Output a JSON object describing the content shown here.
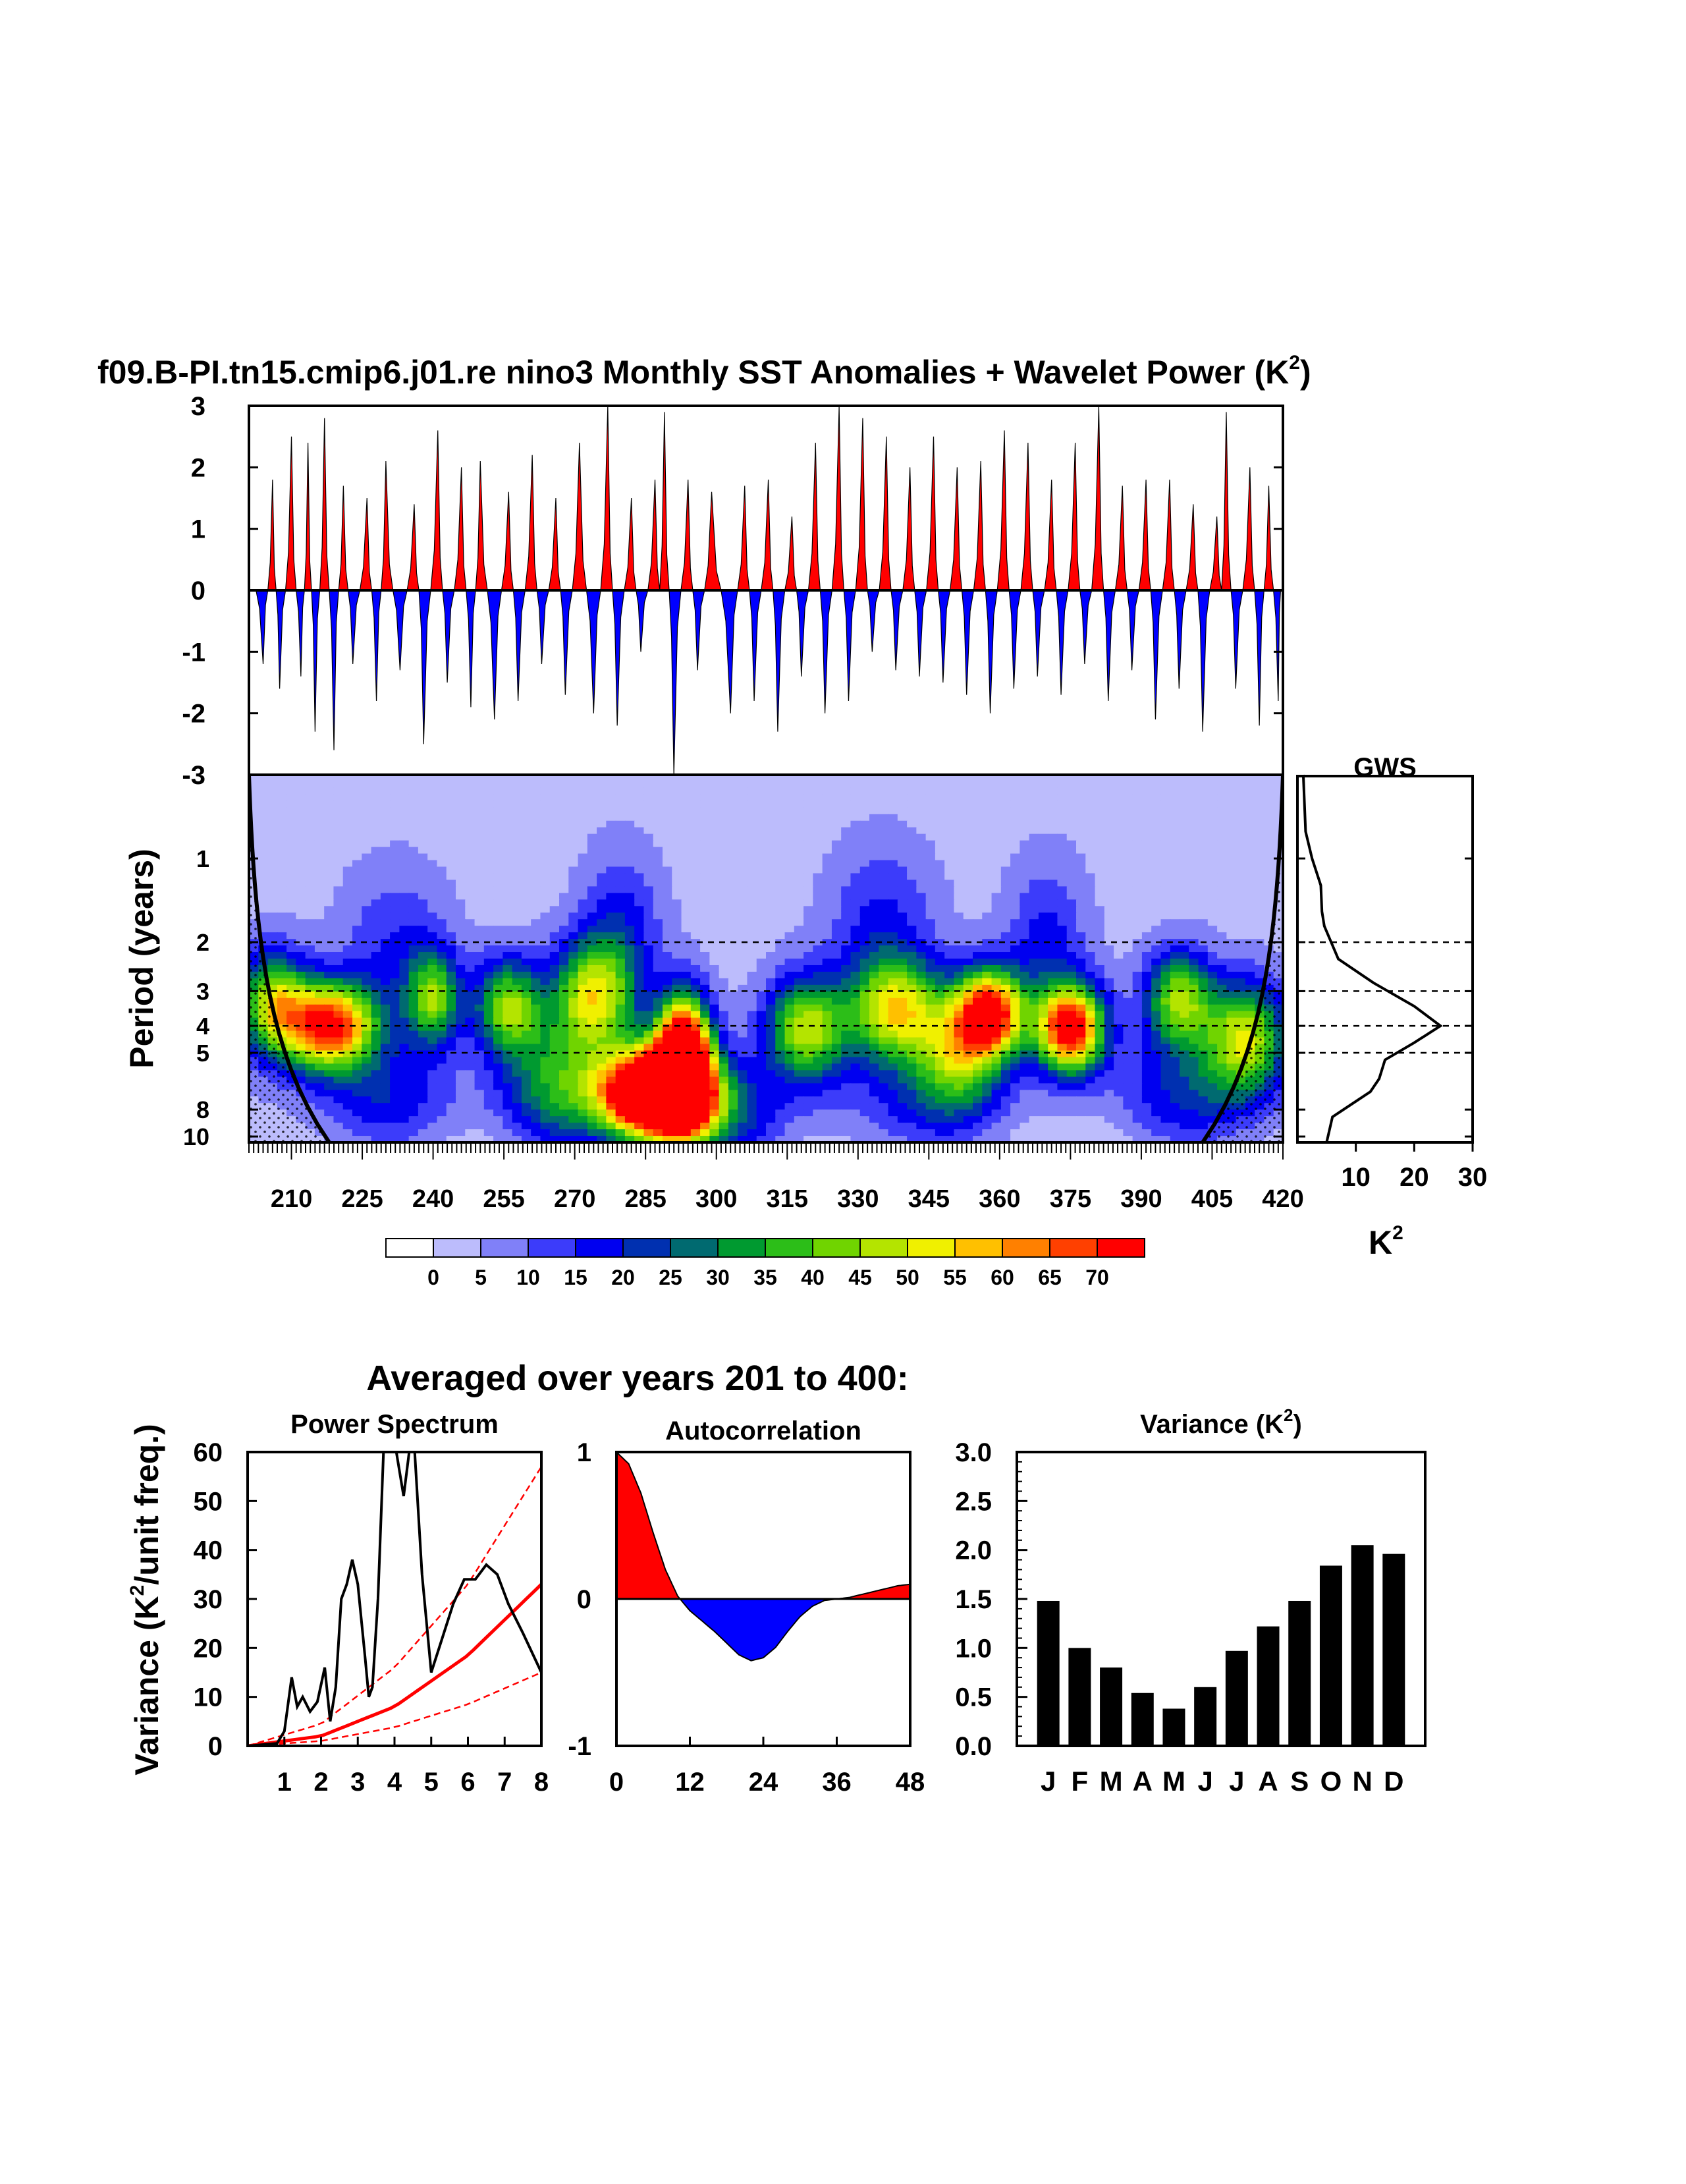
{
  "page": {
    "title": "f09.B-PI.tn15.cmip6.j01.re nino3 Monthly SST Anomalies + Wavelet Power (K",
    "title_sup": "2",
    "title_close": ")",
    "averaged_title": "Averaged over years 201 to 400:"
  },
  "colors": {
    "positive": "#ff0000",
    "negative": "#0000ff",
    "fit": "#ff0000",
    "bars": "#000000"
  },
  "chart_data": [
    {
      "id": "sst",
      "type": "area",
      "xlim": [
        201,
        420
      ],
      "ylim": [
        -3,
        3
      ],
      "yticks": [
        -3,
        -2,
        -1,
        0,
        1,
        2,
        3
      ],
      "ytick_labels": [
        "-3",
        "-2",
        "-1",
        "0",
        "1",
        "2",
        "3"
      ],
      "peaks": [
        {
          "x": 204,
          "y": -1.2
        },
        {
          "x": 206,
          "y": 1.8
        },
        {
          "x": 207.5,
          "y": -1.6
        },
        {
          "x": 210,
          "y": 2.5
        },
        {
          "x": 212,
          "y": -1.4
        },
        {
          "x": 213.5,
          "y": 2.4
        },
        {
          "x": 215,
          "y": -2.3
        },
        {
          "x": 217,
          "y": 2.8
        },
        {
          "x": 219,
          "y": -2.6
        },
        {
          "x": 221,
          "y": 1.7
        },
        {
          "x": 223,
          "y": -1.2
        },
        {
          "x": 226,
          "y": 1.5
        },
        {
          "x": 228,
          "y": -1.8
        },
        {
          "x": 230,
          "y": 2.1
        },
        {
          "x": 233,
          "y": -1.3
        },
        {
          "x": 236,
          "y": 1.4
        },
        {
          "x": 238,
          "y": -2.5
        },
        {
          "x": 241,
          "y": 2.6
        },
        {
          "x": 243,
          "y": -1.5
        },
        {
          "x": 246,
          "y": 2.0
        },
        {
          "x": 248,
          "y": -1.9
        },
        {
          "x": 250,
          "y": 2.1
        },
        {
          "x": 253,
          "y": -2.1
        },
        {
          "x": 256,
          "y": 1.6
        },
        {
          "x": 258,
          "y": -1.8
        },
        {
          "x": 261,
          "y": 2.2
        },
        {
          "x": 263,
          "y": -1.2
        },
        {
          "x": 266,
          "y": 1.5
        },
        {
          "x": 268,
          "y": -1.7
        },
        {
          "x": 271,
          "y": 2.4
        },
        {
          "x": 274,
          "y": -2.0
        },
        {
          "x": 277,
          "y": 3.0
        },
        {
          "x": 279,
          "y": -2.2
        },
        {
          "x": 282,
          "y": 1.5
        },
        {
          "x": 284,
          "y": -1.0
        },
        {
          "x": 287,
          "y": 1.8
        },
        {
          "x": 289,
          "y": 2.9
        },
        {
          "x": 291,
          "y": -3.0
        },
        {
          "x": 294,
          "y": 1.8
        },
        {
          "x": 296,
          "y": -1.3
        },
        {
          "x": 299,
          "y": 1.6
        },
        {
          "x": 303,
          "y": -2.0
        },
        {
          "x": 306,
          "y": 1.7
        },
        {
          "x": 308,
          "y": -1.8
        },
        {
          "x": 311,
          "y": 1.8
        },
        {
          "x": 313,
          "y": -2.3
        },
        {
          "x": 316,
          "y": 1.2
        },
        {
          "x": 318,
          "y": -1.4
        },
        {
          "x": 321,
          "y": 2.4
        },
        {
          "x": 323,
          "y": -2.0
        },
        {
          "x": 326,
          "y": 3.0
        },
        {
          "x": 328,
          "y": -1.8
        },
        {
          "x": 331,
          "y": 2.8
        },
        {
          "x": 333,
          "y": -1.0
        },
        {
          "x": 336,
          "y": 2.5
        },
        {
          "x": 338,
          "y": -1.3
        },
        {
          "x": 341,
          "y": 2.0
        },
        {
          "x": 343,
          "y": -1.4
        },
        {
          "x": 346,
          "y": 2.5
        },
        {
          "x": 348,
          "y": -1.5
        },
        {
          "x": 351,
          "y": 2.0
        },
        {
          "x": 353,
          "y": -1.7
        },
        {
          "x": 356,
          "y": 2.1
        },
        {
          "x": 358,
          "y": -2.0
        },
        {
          "x": 361,
          "y": 2.6
        },
        {
          "x": 363,
          "y": -1.6
        },
        {
          "x": 366,
          "y": 2.4
        },
        {
          "x": 368,
          "y": -1.4
        },
        {
          "x": 371,
          "y": 1.8
        },
        {
          "x": 373,
          "y": -1.7
        },
        {
          "x": 376,
          "y": 2.4
        },
        {
          "x": 378,
          "y": -1.2
        },
        {
          "x": 381,
          "y": 3.0
        },
        {
          "x": 383,
          "y": -1.8
        },
        {
          "x": 386,
          "y": 1.7
        },
        {
          "x": 388,
          "y": -1.3
        },
        {
          "x": 391,
          "y": 1.8
        },
        {
          "x": 393,
          "y": -2.1
        },
        {
          "x": 396,
          "y": 1.8
        },
        {
          "x": 398,
          "y": -1.6
        },
        {
          "x": 401,
          "y": 1.4
        },
        {
          "x": 403,
          "y": -2.3
        },
        {
          "x": 406,
          "y": 1.2
        },
        {
          "x": 408,
          "y": 2.9
        },
        {
          "x": 410,
          "y": -1.6
        },
        {
          "x": 413,
          "y": 2.0
        },
        {
          "x": 415,
          "y": -2.2
        },
        {
          "x": 417,
          "y": 1.7
        },
        {
          "x": 419,
          "y": -1.8
        }
      ]
    },
    {
      "id": "wavelet",
      "type": "heatmap",
      "xlim": [
        201,
        420
      ],
      "period_range": [
        0.5,
        10.5
      ],
      "log_y": true,
      "xticks": [
        210,
        225,
        240,
        255,
        270,
        285,
        300,
        315,
        330,
        345,
        360,
        375,
        390,
        405,
        420
      ],
      "xtick_labels": [
        "210",
        "225",
        "240",
        "255",
        "270",
        "285",
        "300",
        "315",
        "330",
        "345",
        "360",
        "375",
        "390",
        "405",
        "420"
      ],
      "yticks": [
        1,
        2,
        3,
        4,
        5,
        8,
        10
      ],
      "ytick_labels": [
        "1",
        "2",
        "3",
        "4",
        "5",
        "8",
        "10"
      ],
      "ylabel": "Period (years)",
      "dashed_periods": [
        2,
        3,
        4,
        5
      ],
      "background_power": 3,
      "blobs": [
        {
          "x": 218,
          "period": 4.0,
          "power": 70,
          "sx": 7,
          "sy": 0.11
        },
        {
          "x": 206,
          "period": 3.3,
          "power": 42,
          "sx": 5,
          "sy": 0.13
        },
        {
          "x": 240,
          "period": 3.2,
          "power": 38,
          "sx": 4,
          "sy": 0.12
        },
        {
          "x": 256,
          "period": 3.4,
          "power": 40,
          "sx": 5,
          "sy": 0.12
        },
        {
          "x": 274,
          "period": 3.1,
          "power": 45,
          "sx": 6,
          "sy": 0.14
        },
        {
          "x": 287,
          "period": 7.0,
          "power": 110,
          "sx": 8,
          "sy": 0.11
        },
        {
          "x": 293,
          "period": 5.2,
          "power": 95,
          "sx": 4,
          "sy": 0.15
        },
        {
          "x": 266,
          "period": 6.5,
          "power": 30,
          "sx": 8,
          "sy": 0.17
        },
        {
          "x": 319,
          "period": 4.1,
          "power": 45,
          "sx": 6,
          "sy": 0.13
        },
        {
          "x": 338,
          "period": 3.5,
          "power": 48,
          "sx": 7,
          "sy": 0.13
        },
        {
          "x": 358,
          "period": 3.6,
          "power": 72,
          "sx": 5,
          "sy": 0.11
        },
        {
          "x": 375,
          "period": 4.1,
          "power": 75,
          "sx": 5,
          "sy": 0.11
        },
        {
          "x": 351,
          "period": 5.0,
          "power": 34,
          "sx": 6,
          "sy": 0.14
        },
        {
          "x": 398,
          "period": 3.2,
          "power": 42,
          "sx": 5,
          "sy": 0.12
        },
        {
          "x": 412,
          "period": 4.4,
          "power": 45,
          "sx": 6,
          "sy": 0.14
        },
        {
          "x": 300,
          "period": 8.5,
          "power": 22,
          "sx": 10,
          "sy": 0.13
        },
        {
          "x": 230,
          "period": 7.5,
          "power": 16,
          "sx": 10,
          "sy": 0.14
        },
        {
          "x": 400,
          "period": 7.0,
          "power": 18,
          "sx": 10,
          "sy": 0.15
        },
        {
          "x": 345,
          "period": 7.5,
          "power": 14,
          "sx": 12,
          "sy": 0.15
        },
        {
          "x": 280,
          "period": 1.8,
          "power": 14,
          "sx": 6,
          "sy": 0.2
        },
        {
          "x": 335,
          "period": 1.7,
          "power": 13,
          "sx": 8,
          "sy": 0.2
        },
        {
          "x": 232,
          "period": 2.1,
          "power": 12,
          "sx": 8,
          "sy": 0.2
        },
        {
          "x": 370,
          "period": 2.0,
          "power": 14,
          "sx": 6,
          "sy": 0.2
        }
      ],
      "colorbar": {
        "levels": [
          "0",
          "5",
          "10",
          "15",
          "20",
          "25",
          "30",
          "35",
          "40",
          "45",
          "50",
          "55",
          "60",
          "65",
          "70"
        ],
        "colors": [
          "#ffffff",
          "#bcbcfc",
          "#8080f8",
          "#3c3cfa",
          "#0000f0",
          "#0030b0",
          "#006a70",
          "#009a30",
          "#2cbe18",
          "#70d400",
          "#b4e400",
          "#f0f000",
          "#ffc000",
          "#ff8000",
          "#ff4000",
          "#ff0000"
        ]
      }
    },
    {
      "id": "gws",
      "type": "line",
      "title": "GWS",
      "xlabel": "K",
      "xlabel_sup": "2",
      "xlim": [
        0,
        30
      ],
      "xticks": [
        10,
        20,
        30
      ],
      "xtick_labels": [
        "10",
        "20",
        "30"
      ],
      "points": [
        {
          "power": 1,
          "period": 0.5
        },
        {
          "power": 1.4,
          "period": 0.8
        },
        {
          "power": 2.5,
          "period": 1.0
        },
        {
          "power": 4.0,
          "period": 1.25
        },
        {
          "power": 4.2,
          "period": 1.55
        },
        {
          "power": 4.6,
          "period": 1.75
        },
        {
          "power": 7.0,
          "period": 2.3
        },
        {
          "power": 13.0,
          "period": 2.8
        },
        {
          "power": 20.0,
          "period": 3.4
        },
        {
          "power": 24.5,
          "period": 4.0
        },
        {
          "power": 20.0,
          "period": 4.6
        },
        {
          "power": 15.0,
          "period": 5.3
        },
        {
          "power": 14.0,
          "period": 6.2
        },
        {
          "power": 12.5,
          "period": 6.9
        },
        {
          "power": 6.0,
          "period": 8.5
        },
        {
          "power": 5.0,
          "period": 10.5
        }
      ]
    },
    {
      "id": "power_spectrum",
      "type": "line",
      "title": "Power Spectrum",
      "ylabel": "Variance (K",
      "ylabel_sup": "2",
      "ylabel_tail": "/unit freq.)",
      "xlim": [
        0,
        8
      ],
      "ylim": [
        0,
        60
      ],
      "xticks": [
        1,
        2,
        3,
        4,
        5,
        6,
        7,
        8
      ],
      "xtick_labels": [
        "1",
        "2",
        "3",
        "4",
        "5",
        "6",
        "7",
        "8"
      ],
      "yticks": [
        0,
        10,
        20,
        30,
        40,
        50,
        60
      ],
      "ytick_labels": [
        "0",
        "10",
        "20",
        "30",
        "40",
        "50",
        "60"
      ],
      "spectrum": [
        {
          "x": 0.0,
          "y": 0
        },
        {
          "x": 0.8,
          "y": 0.5
        },
        {
          "x": 1.0,
          "y": 3
        },
        {
          "x": 1.2,
          "y": 14
        },
        {
          "x": 1.35,
          "y": 8
        },
        {
          "x": 1.5,
          "y": 10
        },
        {
          "x": 1.7,
          "y": 7
        },
        {
          "x": 1.9,
          "y": 9
        },
        {
          "x": 2.1,
          "y": 16
        },
        {
          "x": 2.25,
          "y": 5
        },
        {
          "x": 2.4,
          "y": 12
        },
        {
          "x": 2.55,
          "y": 30
        },
        {
          "x": 2.7,
          "y": 33
        },
        {
          "x": 2.85,
          "y": 38
        },
        {
          "x": 3.0,
          "y": 33
        },
        {
          "x": 3.2,
          "y": 18
        },
        {
          "x": 3.3,
          "y": 10
        },
        {
          "x": 3.4,
          "y": 12
        },
        {
          "x": 3.55,
          "y": 30
        },
        {
          "x": 3.7,
          "y": 60
        },
        {
          "x": 3.85,
          "y": 60
        },
        {
          "x": 4.05,
          "y": 60
        },
        {
          "x": 4.25,
          "y": 51
        },
        {
          "x": 4.4,
          "y": 60
        },
        {
          "x": 4.55,
          "y": 60
        },
        {
          "x": 4.75,
          "y": 35
        },
        {
          "x": 5.0,
          "y": 15
        },
        {
          "x": 5.3,
          "y": 22
        },
        {
          "x": 5.6,
          "y": 29
        },
        {
          "x": 5.9,
          "y": 34
        },
        {
          "x": 6.2,
          "y": 34
        },
        {
          "x": 6.5,
          "y": 37
        },
        {
          "x": 6.8,
          "y": 35
        },
        {
          "x": 7.1,
          "y": 29
        },
        {
          "x": 7.5,
          "y": 23
        },
        {
          "x": 8.0,
          "y": 15
        }
      ],
      "red_noise_fit": [
        {
          "x": 0,
          "y": 0
        },
        {
          "x": 2,
          "y": 2
        },
        {
          "x": 4,
          "y": 8
        },
        {
          "x": 6,
          "y": 18.5
        },
        {
          "x": 8,
          "y": 33
        }
      ],
      "upper_bound": [
        {
          "x": 0,
          "y": 0
        },
        {
          "x": 2,
          "y": 4.5
        },
        {
          "x": 4,
          "y": 16
        },
        {
          "x": 6,
          "y": 33
        },
        {
          "x": 8,
          "y": 57
        }
      ],
      "lower_bound": [
        {
          "x": 0,
          "y": 0
        },
        {
          "x": 2,
          "y": 1
        },
        {
          "x": 4,
          "y": 3.8
        },
        {
          "x": 6,
          "y": 8.5
        },
        {
          "x": 8,
          "y": 15
        }
      ]
    },
    {
      "id": "autocorrelation",
      "type": "area",
      "title": "Autocorrelation",
      "xlim": [
        0,
        48
      ],
      "ylim": [
        -1,
        1
      ],
      "xticks": [
        0,
        12,
        24,
        36,
        48
      ],
      "xtick_labels": [
        "0",
        "12",
        "24",
        "36",
        "48"
      ],
      "yticks": [
        -1,
        0,
        1
      ],
      "ytick_labels": [
        "-1",
        "0",
        "1"
      ],
      "lags": [
        0,
        2,
        4,
        6,
        8,
        10,
        12,
        14,
        16,
        18,
        20,
        22,
        24,
        26,
        28,
        30,
        32,
        34,
        36,
        38,
        40,
        42,
        44,
        46,
        48
      ],
      "values": [
        1.0,
        0.92,
        0.72,
        0.45,
        0.2,
        0.02,
        -0.08,
        -0.15,
        -0.22,
        -0.3,
        -0.38,
        -0.42,
        -0.4,
        -0.33,
        -0.22,
        -0.12,
        -0.05,
        -0.01,
        0.0,
        0.01,
        0.03,
        0.05,
        0.07,
        0.09,
        0.1
      ]
    },
    {
      "id": "monthly_variance",
      "type": "bar",
      "title": "Variance (K",
      "title_sup": "2",
      "title_close": ")",
      "categories": [
        "J",
        "F",
        "M",
        "A",
        "M",
        "J",
        "J",
        "A",
        "S",
        "O",
        "N",
        "D"
      ],
      "values": [
        1.48,
        1.0,
        0.8,
        0.54,
        0.38,
        0.6,
        0.97,
        1.22,
        1.48,
        1.84,
        2.05,
        1.96
      ],
      "ylim": [
        0,
        3
      ],
      "yticks": [
        0,
        0.5,
        1,
        1.5,
        2,
        2.5,
        3
      ],
      "ytick_labels": [
        "0.0",
        "0.5",
        "1.0",
        "1.5",
        "2.0",
        "2.5",
        "3.0"
      ]
    }
  ]
}
